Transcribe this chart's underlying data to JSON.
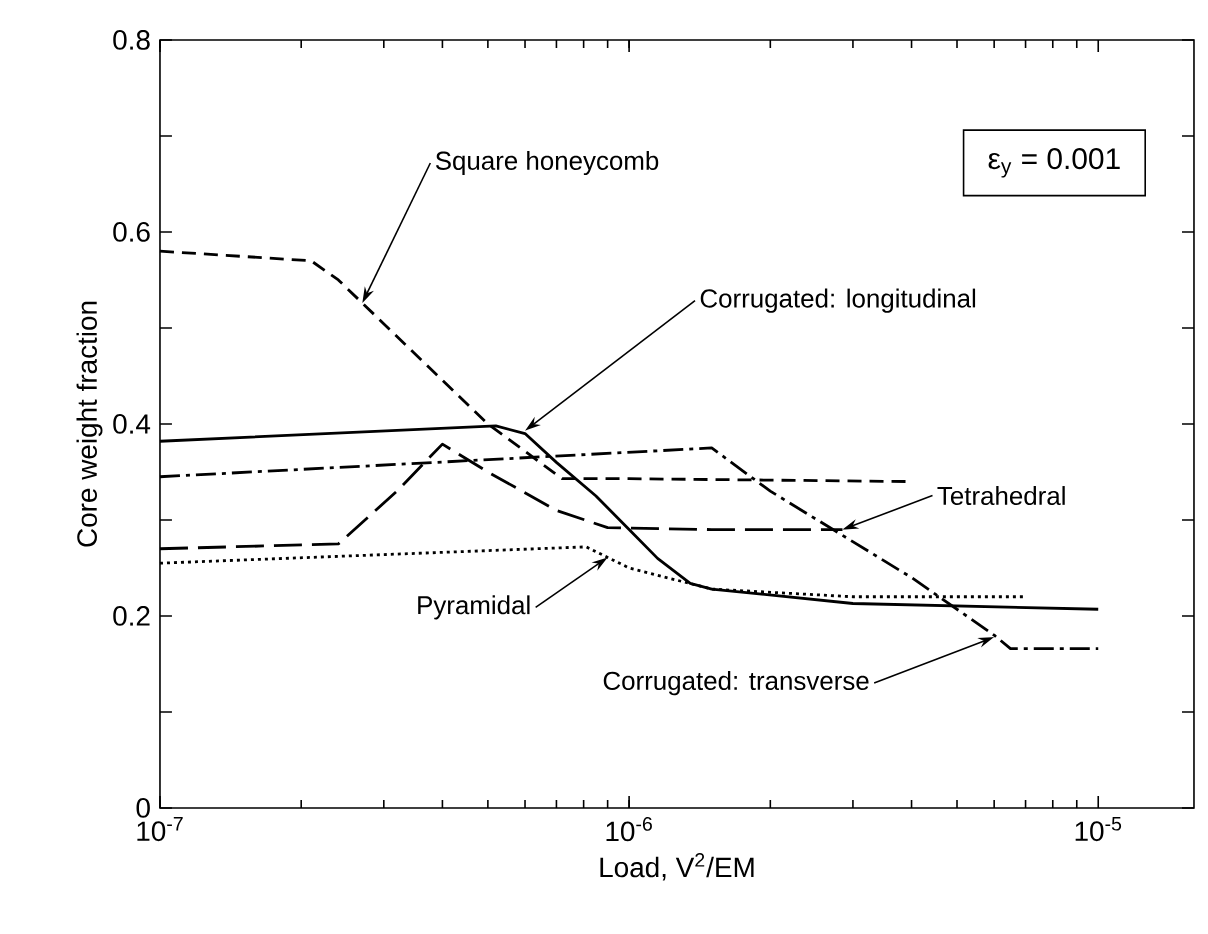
{
  "chart_data": {
    "type": "line",
    "xlabel": "Load, V$^{2}$/EM",
    "ylabel": "Core weight fraction",
    "log": "x",
    "xlim": [
      1e-07,
      1.6e-05
    ],
    "ylim": [
      0,
      0.8
    ],
    "xticks": [
      {
        "value": 1e-07,
        "label": "10$^{-7}$"
      },
      {
        "value": 1e-06,
        "label": "10$^{-6}$"
      },
      {
        "value": 1e-05,
        "label": "10$^{-5}$"
      }
    ],
    "yticks": [
      0,
      {
        "value": 0.1,
        "label": null
      },
      0.2,
      {
        "value": 0.3,
        "label": null
      },
      0.4,
      {
        "value": 0.5,
        "label": null
      },
      0.6,
      {
        "value": 0.7,
        "label": null
      },
      0.8
    ],
    "grid": false,
    "marker": "none",
    "series": [
      {
        "color": "#000000",
        "line_style": "dashed",
        "x": [
          1e-07,
          2.1e-07,
          2.4e-07,
          5e-07,
          7.2e-07,
          1e-06,
          4e-06
        ],
        "values": [
          0.58,
          0.57,
          0.55,
          0.4,
          0.343,
          0.343,
          0.34
        ]
      },
      {
        "color": "#000000",
        "line_style": "solid",
        "x": [
          1e-07,
          5.2e-07,
          6e-07,
          7e-07,
          8.5e-07,
          1e-06,
          1.15e-06,
          1.35e-06,
          1.5e-06,
          3e-06,
          1e-05
        ],
        "values": [
          0.382,
          0.398,
          0.39,
          0.36,
          0.325,
          0.29,
          0.26,
          0.234,
          0.228,
          0.213,
          0.207
        ]
      },
      {
        "color": "#000000",
        "line_style": "dashed",
        "x": [
          1e-07,
          2.4e-07,
          3.2e-07,
          4e-07,
          5e-07,
          7e-07,
          9e-07,
          1.5e-06,
          2.85e-06
        ],
        "values": [
          0.27,
          0.275,
          0.33,
          0.379,
          0.35,
          0.31,
          0.292,
          0.29,
          0.29
        ]
      },
      {
        "color": "#000000",
        "line_style": "dotted",
        "x": [
          1e-07,
          8.1e-07,
          1e-06,
          1.5e-06,
          3e-06,
          7e-06
        ],
        "values": [
          0.255,
          0.272,
          0.25,
          0.228,
          0.22,
          0.22
        ]
      },
      {
        "color": "#000000",
        "line_style": "dashed",
        "x": [
          1e-07,
          1.5e-06,
          2e-06,
          4e-06,
          6e-06,
          6.5e-06,
          1e-05
        ],
        "values": [
          0.345,
          0.375,
          0.33,
          0.24,
          0.18,
          0.166,
          0.166
        ]
      }
    ],
    "annotations": [
      {
        "text": "Square honeycomb",
        "x": 2.7e-07,
        "y": 0.526
      },
      {
        "text": "Corrugated: longitudinal",
        "x": 6e-07,
        "y": 0.393
      },
      {
        "text": "Tetrahedral",
        "x": 2.85e-06,
        "y": 0.29
      },
      {
        "text": "Pyramidal",
        "x": 9e-07,
        "y": 0.261
      },
      {
        "text": "Corrugated: transverse",
        "x": 6e-06,
        "y": 0.178
      },
      "ε$_{y}$ = 0.001"
    ]
  }
}
